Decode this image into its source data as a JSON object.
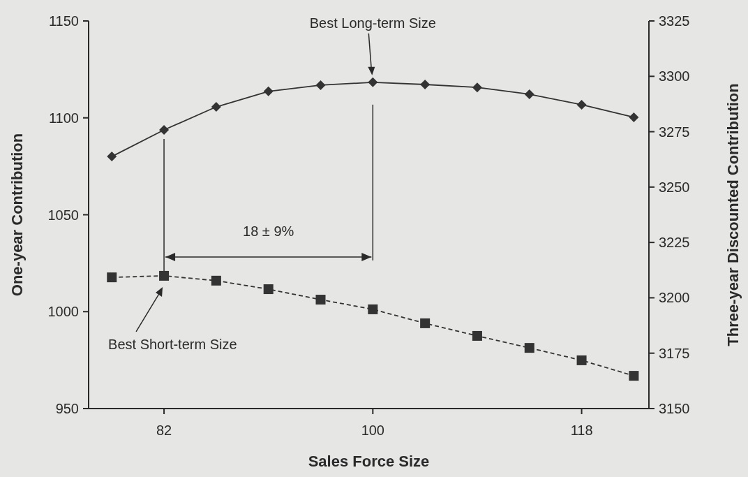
{
  "chart_data": {
    "type": "line",
    "xlabel": "Sales Force Size",
    "ylabel": "One-year Contribution",
    "y2label": "Three-year Discounted Contribution",
    "xlim": [
      75.5,
      123.8
    ],
    "xticks": [
      82,
      100,
      118
    ],
    "ylim": [
      950,
      1150
    ],
    "yticks": [
      950,
      1000,
      1050,
      1100,
      1150
    ],
    "y2lim": [
      3150,
      3325
    ],
    "y2ticks": [
      3150,
      3175,
      3200,
      3225,
      3250,
      3275,
      3300,
      3325
    ],
    "x": [
      77.5,
      82,
      86.5,
      91,
      95.5,
      100,
      104.5,
      109,
      113.5,
      118,
      122.5
    ],
    "series": [
      {
        "color": "#333333",
        "axis": "y2",
        "marker": "diamond",
        "line_style": "solid",
        "values": [
          3263.8,
          3275.8,
          3286.2,
          3293.2,
          3296,
          3297.3,
          3296.3,
          3295,
          3291.9,
          3287.2,
          3281.5
        ]
      },
      {
        "color": "#333333",
        "axis": "y",
        "marker": "square",
        "line_style": "dashed",
        "values": [
          1017.7,
          1018.5,
          1016,
          1011.6,
          1006.2,
          1001.2,
          994,
          987.5,
          981.3,
          974.9,
          966.9
        ]
      }
    ],
    "annotations": [
      "Best Long-term Size",
      "Best Short-term Size",
      "18 ± 9%"
    ],
    "grid": false
  }
}
